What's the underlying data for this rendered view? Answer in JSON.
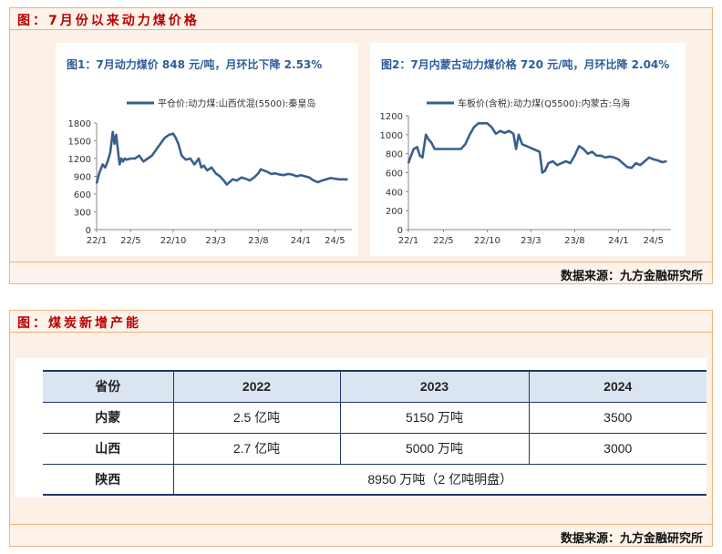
{
  "panel1": {
    "title": "图：7月份以来动力煤价格",
    "source": "数据来源：九方金融研究所"
  },
  "panel2": {
    "title": "图：煤炭新增产能",
    "source": "数据来源：九方金融研究所"
  },
  "chart_data": [
    {
      "type": "line",
      "title": "图1：7月动力煤价 848 元/吨，月环比下降 2.53%",
      "color": "#3a5f8f",
      "xlabel": "",
      "ylabel": "",
      "ylim": [
        0,
        1800
      ],
      "yticks": [
        0,
        300,
        600,
        900,
        1200,
        1500,
        1800
      ],
      "xticks": [
        "22/1",
        "22/5",
        "22/10",
        "23/3",
        "23/8",
        "24/1",
        "24/5"
      ],
      "xtick_pos": [
        0,
        4,
        9,
        14,
        19,
        24,
        28
      ],
      "xlim": [
        0,
        30
      ],
      "grid": false,
      "legend": "top",
      "series": [
        {
          "name": "平仓价:动力煤:山西优混(5500):秦皇岛",
          "x": [
            0,
            0.3,
            0.7,
            1.0,
            1.3,
            1.6,
            1.9,
            2.1,
            2.3,
            2.5,
            2.7,
            2.9,
            3.1,
            3.3,
            3.5,
            4.0,
            4.5,
            5.0,
            5.5,
            6.0,
            6.5,
            7.0,
            7.5,
            8.0,
            8.5,
            9.0,
            9.3,
            9.6,
            10.0,
            10.5,
            11.0,
            11.5,
            12.0,
            12.3,
            12.6,
            13.0,
            13.5,
            14.0,
            14.5,
            15.0,
            15.3,
            15.6,
            16.0,
            16.5,
            17.0,
            17.5,
            18.0,
            18.5,
            19.0,
            19.3,
            19.6,
            20.0,
            20.5,
            21.0,
            21.5,
            22.0,
            22.5,
            23.0,
            23.5,
            24.0,
            24.5,
            25.0,
            25.5,
            26.0,
            26.5,
            27.0,
            27.5,
            28.0,
            28.5,
            29.0,
            29.5
          ],
          "y": [
            780,
            950,
            1100,
            1050,
            1150,
            1300,
            1650,
            1450,
            1600,
            1350,
            1100,
            1200,
            1150,
            1200,
            1180,
            1200,
            1200,
            1250,
            1150,
            1200,
            1250,
            1350,
            1450,
            1550,
            1600,
            1620,
            1550,
            1450,
            1250,
            1180,
            1200,
            1100,
            1200,
            1050,
            1080,
            1000,
            1050,
            950,
            900,
            820,
            760,
            800,
            850,
            830,
            880,
            860,
            830,
            880,
            950,
            1020,
            1000,
            980,
            940,
            950,
            930,
            920,
            940,
            930,
            900,
            920,
            900,
            880,
            830,
            800,
            830,
            850,
            870,
            860,
            850,
            850,
            848
          ]
        }
      ]
    },
    {
      "type": "line",
      "title": "图2：7月内蒙古动力煤价格 720 元/吨，月环比降 2.04%",
      "color": "#3a5f8f",
      "xlabel": "",
      "ylabel": "",
      "ylim": [
        0,
        1200
      ],
      "yticks": [
        0,
        200,
        400,
        600,
        800,
        1000,
        1200
      ],
      "xticks": [
        "22/1",
        "22/5",
        "22/10",
        "23/3",
        "23/8",
        "24/1",
        "24/5"
      ],
      "xtick_pos": [
        0,
        4,
        9,
        14,
        19,
        24,
        28
      ],
      "xlim": [
        0,
        30
      ],
      "grid": false,
      "legend": "top",
      "series": [
        {
          "name": "车板价(含税):动力煤(Q5500):内蒙古:乌海",
          "x": [
            0,
            0.3,
            0.6,
            1.0,
            1.3,
            1.6,
            2.0,
            2.3,
            2.6,
            3.0,
            3.5,
            4.0,
            4.5,
            5.0,
            5.5,
            6.0,
            6.5,
            7.0,
            7.5,
            8.0,
            8.5,
            9.0,
            9.5,
            10.0,
            10.5,
            11.0,
            11.5,
            12.0,
            12.3,
            12.6,
            13.0,
            13.5,
            14.0,
            14.5,
            15.0,
            15.3,
            15.6,
            16.0,
            16.5,
            17.0,
            17.5,
            18.0,
            18.5,
            19.0,
            19.5,
            20.0,
            20.5,
            21.0,
            21.5,
            22.0,
            22.5,
            23.0,
            23.5,
            24.0,
            24.5,
            25.0,
            25.5,
            26.0,
            26.5,
            27.0,
            27.5,
            28.0,
            28.5,
            29.0,
            29.5
          ],
          "y": [
            700,
            780,
            850,
            870,
            780,
            760,
            1000,
            950,
            920,
            850,
            850,
            850,
            850,
            850,
            850,
            850,
            900,
            1000,
            1080,
            1120,
            1120,
            1120,
            1080,
            1010,
            1040,
            1020,
            1040,
            1010,
            850,
            1000,
            900,
            880,
            860,
            840,
            820,
            600,
            620,
            700,
            720,
            680,
            700,
            720,
            700,
            780,
            880,
            850,
            800,
            820,
            780,
            780,
            760,
            770,
            760,
            740,
            700,
            660,
            650,
            700,
            680,
            720,
            760,
            740,
            730,
            710,
            720
          ]
        }
      ]
    }
  ],
  "capacity_table": {
    "headers": [
      "省份",
      "2022",
      "2023",
      "2024"
    ],
    "rows": [
      {
        "province": "内蒙",
        "y2022": "2.5 亿吨",
        "y2023": "5150 万吨",
        "y2024": "3500"
      },
      {
        "province": "山西",
        "y2022": "2.7 亿吨",
        "y2023": "5000 万吨",
        "y2024": "3000"
      },
      {
        "province": "陕西",
        "merged": "8950 万吨（2 亿吨明盘）"
      }
    ]
  }
}
